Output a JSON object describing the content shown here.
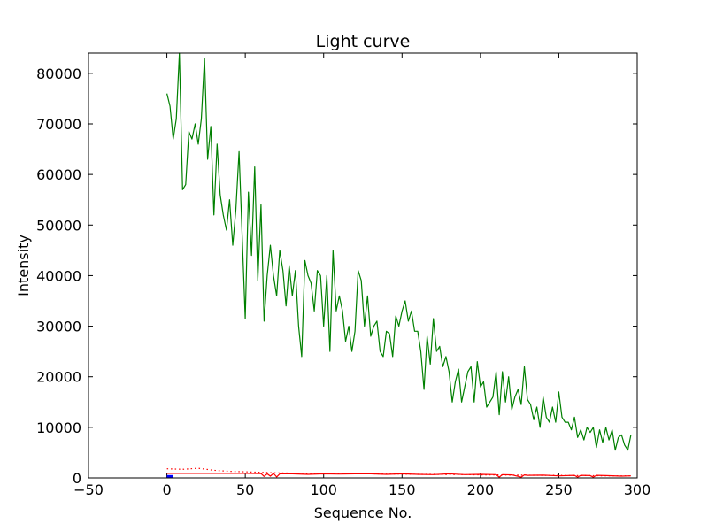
{
  "chart_data": {
    "type": "line",
    "title": "Light curve",
    "xlabel": "Sequence No.",
    "ylabel": "Intensity",
    "xlim": [
      -50,
      300
    ],
    "ylim": [
      0,
      84000
    ],
    "xticks": [
      -50,
      0,
      50,
      100,
      150,
      200,
      250,
      300
    ],
    "yticks": [
      0,
      10000,
      20000,
      30000,
      40000,
      50000,
      60000,
      70000,
      80000
    ],
    "grid": false,
    "legend": "none",
    "series": [
      {
        "color": "#008000",
        "style": "solid",
        "x": [
          0,
          2,
          4,
          6,
          8,
          10,
          12,
          14,
          16,
          18,
          20,
          22,
          24,
          26,
          28,
          30,
          32,
          34,
          36,
          38,
          40,
          42,
          44,
          46,
          48,
          50,
          52,
          54,
          56,
          58,
          60,
          62,
          64,
          66,
          68,
          70,
          72,
          74,
          76,
          78,
          80,
          82,
          84,
          86,
          88,
          90,
          92,
          94,
          96,
          98,
          100,
          102,
          104,
          106,
          108,
          110,
          112,
          114,
          116,
          118,
          120,
          122,
          124,
          126,
          128,
          130,
          132,
          134,
          136,
          138,
          140,
          142,
          144,
          146,
          148,
          150,
          152,
          154,
          156,
          158,
          160,
          162,
          164,
          166,
          168,
          170,
          172,
          174,
          176,
          178,
          180,
          182,
          184,
          186,
          188,
          190,
          192,
          194,
          196,
          198,
          200,
          202,
          204,
          206,
          208,
          210,
          212,
          214,
          216,
          218,
          220,
          222,
          224,
          226,
          228,
          230,
          232,
          234,
          236,
          238,
          240,
          242,
          244,
          246,
          248,
          250,
          252,
          254,
          256,
          258,
          260,
          262,
          264,
          266,
          268,
          270,
          272,
          274,
          276,
          278,
          280,
          282,
          284,
          286,
          288,
          290,
          292,
          294,
          296
        ],
        "y": [
          76000,
          73500,
          67000,
          71000,
          84000,
          57000,
          58000,
          68500,
          67000,
          70000,
          66000,
          71000,
          83000,
          63000,
          69500,
          52000,
          66000,
          56000,
          52000,
          49000,
          55000,
          46000,
          53000,
          64500,
          48000,
          31500,
          56500,
          44000,
          61500,
          39000,
          54000,
          31000,
          40000,
          46000,
          40000,
          36000,
          45000,
          41000,
          34000,
          42000,
          36000,
          41000,
          30000,
          24000,
          43000,
          40000,
          38500,
          33000,
          41000,
          40000,
          30000,
          40000,
          25000,
          45000,
          33000,
          36000,
          33000,
          27000,
          30000,
          25000,
          29000,
          41000,
          39000,
          30000,
          36000,
          28000,
          30000,
          31000,
          25000,
          24000,
          29000,
          28500,
          24000,
          32000,
          30000,
          33000,
          35000,
          31000,
          33000,
          29000,
          29000,
          25000,
          17500,
          28000,
          22500,
          31500,
          25000,
          26000,
          22000,
          24000,
          21000,
          15000,
          19000,
          21500,
          15000,
          18000,
          21000,
          22000,
          15000,
          23000,
          18000,
          19000,
          14000,
          15000,
          16000,
          21000,
          12500,
          21000,
          15000,
          20000,
          13500,
          16000,
          17500,
          14500,
          22000,
          15500,
          14500,
          11500,
          14000,
          10000,
          16000,
          12000,
          11000,
          14000,
          11000,
          17000,
          12000,
          11000,
          11000,
          9500,
          12000,
          8000,
          9500,
          7500,
          10000,
          9000,
          10000,
          6000,
          9500,
          7000,
          10000,
          7500,
          9500,
          5500,
          8000,
          8500,
          6500,
          5500,
          8500
        ],
        "labels_shown": false
      },
      {
        "color": "#ff0000",
        "style": "dotted",
        "x": [
          0,
          10,
          20,
          30,
          40,
          50,
          60,
          70,
          80,
          90,
          100,
          110,
          120,
          130,
          140,
          150,
          160,
          170,
          180,
          190,
          200,
          210,
          220,
          230,
          240,
          250,
          260,
          270,
          280,
          290,
          296
        ],
        "y": [
          1800,
          1700,
          1900,
          1500,
          1300,
          1200,
          1100,
          1000,
          950,
          900,
          850,
          850,
          800,
          800,
          750,
          750,
          700,
          700,
          650,
          650,
          600,
          600,
          550,
          550,
          500,
          500,
          450,
          450,
          400,
          400,
          400
        ]
      },
      {
        "color": "#ff0000",
        "style": "solid",
        "x": [
          0,
          10,
          20,
          30,
          40,
          50,
          60,
          62,
          64,
          66,
          68,
          70,
          72,
          80,
          90,
          100,
          110,
          120,
          130,
          140,
          150,
          160,
          170,
          180,
          190,
          200,
          210,
          212,
          214,
          220,
          226,
          228,
          230,
          240,
          250,
          260,
          262,
          264,
          270,
          272,
          274,
          280,
          290,
          296
        ],
        "y": [
          900,
          900,
          900,
          900,
          900,
          900,
          850,
          300,
          800,
          350,
          900,
          200,
          800,
          800,
          700,
          800,
          750,
          800,
          800,
          700,
          800,
          700,
          650,
          800,
          650,
          700,
          650,
          150,
          650,
          600,
          150,
          600,
          500,
          550,
          400,
          500,
          150,
          500,
          450,
          150,
          500,
          450,
          350,
          400
        ]
      },
      {
        "color": "#0000ff",
        "style": "solid",
        "x": [
          0,
          1,
          2,
          3,
          4
        ],
        "y": [
          300,
          300,
          300,
          300,
          300
        ]
      }
    ]
  }
}
